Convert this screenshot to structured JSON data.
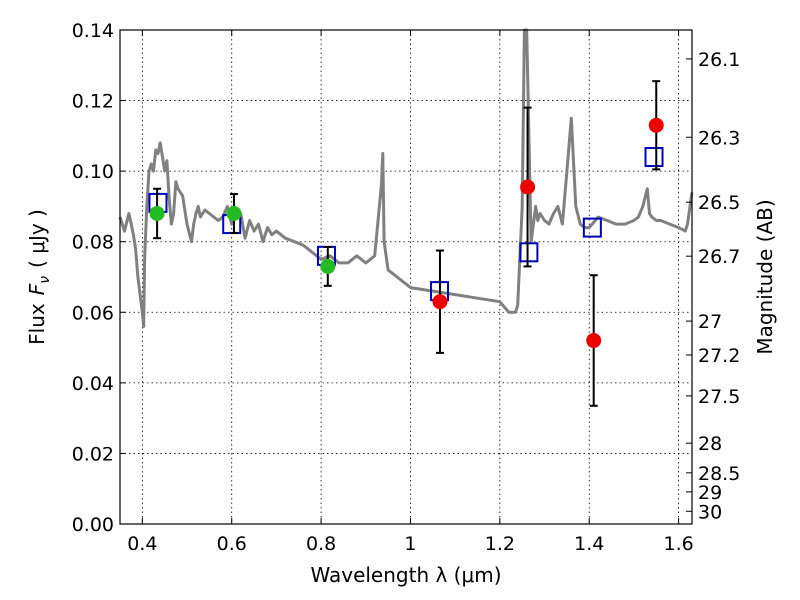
{
  "chart_data": {
    "type": "scatter",
    "xlabel": "Wavelength  λ (μm)",
    "ylabel_text": "Flux",
    "ylabel_symbol": "F",
    "ylabel_subscript": "ν",
    "ylabel_unit": "( μJy )",
    "y2label": "Magnitude (AB)",
    "xlim": [
      0.35,
      1.63
    ],
    "ylim": [
      0.0,
      0.14
    ],
    "grid": true,
    "x_ticks": [
      0.4,
      0.6,
      0.8,
      1.0,
      1.2,
      1.4,
      1.6
    ],
    "x_tick_labels": [
      "0.4",
      "0.6",
      "0.8",
      "1",
      "1.2",
      "1.4",
      "1.6"
    ],
    "y_ticks": [
      0.0,
      0.02,
      0.04,
      0.06,
      0.08,
      0.1,
      0.12,
      0.14
    ],
    "y_tick_labels": [
      "0.00",
      "0.02",
      "0.04",
      "0.06",
      "0.08",
      "0.10",
      "0.12",
      "0.14"
    ],
    "y2_ticks": [
      {
        "label": "26.1",
        "flux": 0.1318
      },
      {
        "label": "26.3",
        "flux": 0.1096
      },
      {
        "label": "26.5",
        "flux": 0.0912
      },
      {
        "label": "26.7",
        "flux": 0.0759
      },
      {
        "label": "27",
        "flux": 0.0575
      },
      {
        "label": "27.2",
        "flux": 0.0479
      },
      {
        "label": "27.5",
        "flux": 0.0363
      },
      {
        "label": "28",
        "flux": 0.0229
      },
      {
        "label": "28.5",
        "flux": 0.0145
      },
      {
        "label": "29",
        "flux": 0.0091
      },
      {
        "label": "30",
        "flux": 0.0036
      }
    ],
    "series": [
      {
        "kind": "line",
        "color": "#808080",
        "x": [
          0.35,
          0.36,
          0.37,
          0.375,
          0.38,
          0.385,
          0.39,
          0.395,
          0.4,
          0.403,
          0.405,
          0.41,
          0.415,
          0.42,
          0.425,
          0.43,
          0.435,
          0.44,
          0.445,
          0.45,
          0.455,
          0.46,
          0.465,
          0.47,
          0.475,
          0.48,
          0.49,
          0.5,
          0.51,
          0.515,
          0.52,
          0.525,
          0.53,
          0.54,
          0.55,
          0.56,
          0.57,
          0.58,
          0.59,
          0.6,
          0.61,
          0.62,
          0.63,
          0.64,
          0.65,
          0.66,
          0.67,
          0.68,
          0.69,
          0.7,
          0.72,
          0.74,
          0.76,
          0.78,
          0.8,
          0.82,
          0.84,
          0.86,
          0.88,
          0.9,
          0.92,
          0.935,
          0.938,
          0.941,
          0.95,
          0.97,
          1.0,
          1.05,
          1.1,
          1.15,
          1.2,
          1.22,
          1.235,
          1.24,
          1.25,
          1.255,
          1.26,
          1.265,
          1.27,
          1.275,
          1.28,
          1.285,
          1.29,
          1.3,
          1.31,
          1.32,
          1.33,
          1.34,
          1.35,
          1.36,
          1.37,
          1.38,
          1.39,
          1.4,
          1.42,
          1.44,
          1.46,
          1.48,
          1.5,
          1.51,
          1.52,
          1.53,
          1.535,
          1.54,
          1.55,
          1.56,
          1.58,
          1.6,
          1.615,
          1.62,
          1.63
        ],
        "y": [
          0.087,
          0.083,
          0.088,
          0.085,
          0.082,
          0.078,
          0.07,
          0.065,
          0.06,
          0.056,
          0.075,
          0.09,
          0.1,
          0.102,
          0.1,
          0.106,
          0.105,
          0.108,
          0.104,
          0.1,
          0.103,
          0.092,
          0.085,
          0.088,
          0.097,
          0.095,
          0.093,
          0.085,
          0.08,
          0.085,
          0.088,
          0.09,
          0.087,
          0.089,
          0.088,
          0.087,
          0.086,
          0.087,
          0.09,
          0.085,
          0.089,
          0.088,
          0.081,
          0.086,
          0.083,
          0.085,
          0.08,
          0.084,
          0.082,
          0.083,
          0.081,
          0.08,
          0.079,
          0.077,
          0.075,
          0.076,
          0.074,
          0.074,
          0.076,
          0.074,
          0.076,
          0.096,
          0.105,
          0.08,
          0.072,
          0.07,
          0.067,
          0.066,
          0.065,
          0.064,
          0.063,
          0.06,
          0.06,
          0.062,
          0.09,
          0.14,
          0.14,
          0.11,
          0.08,
          0.085,
          0.09,
          0.086,
          0.088,
          0.086,
          0.085,
          0.088,
          0.09,
          0.085,
          0.1,
          0.115,
          0.09,
          0.085,
          0.084,
          0.084,
          0.087,
          0.086,
          0.085,
          0.085,
          0.086,
          0.087,
          0.09,
          0.095,
          0.088,
          0.087,
          0.086,
          0.086,
          0.085,
          0.084,
          0.083,
          0.085,
          0.094
        ]
      },
      {
        "kind": "model_squares",
        "color": "#0000bb",
        "x": [
          0.435,
          0.6,
          0.812,
          1.065,
          1.265,
          1.407,
          1.545
        ],
        "y": [
          0.091,
          0.085,
          0.076,
          0.066,
          0.077,
          0.084,
          0.104
        ]
      },
      {
        "kind": "green_points",
        "color": "#22bb22",
        "x": [
          0.433,
          0.605,
          0.815
        ],
        "y": [
          0.088,
          0.088,
          0.073
        ],
        "err": [
          0.007,
          0.0055,
          0.0055
        ]
      },
      {
        "kind": "red_points",
        "color": "#ee0000",
        "x": [
          1.066,
          1.262,
          1.41,
          1.55
        ],
        "y": [
          0.063,
          0.0955,
          0.052,
          0.113
        ],
        "err": [
          0.0145,
          0.0225,
          0.0185,
          0.0125
        ]
      }
    ]
  }
}
